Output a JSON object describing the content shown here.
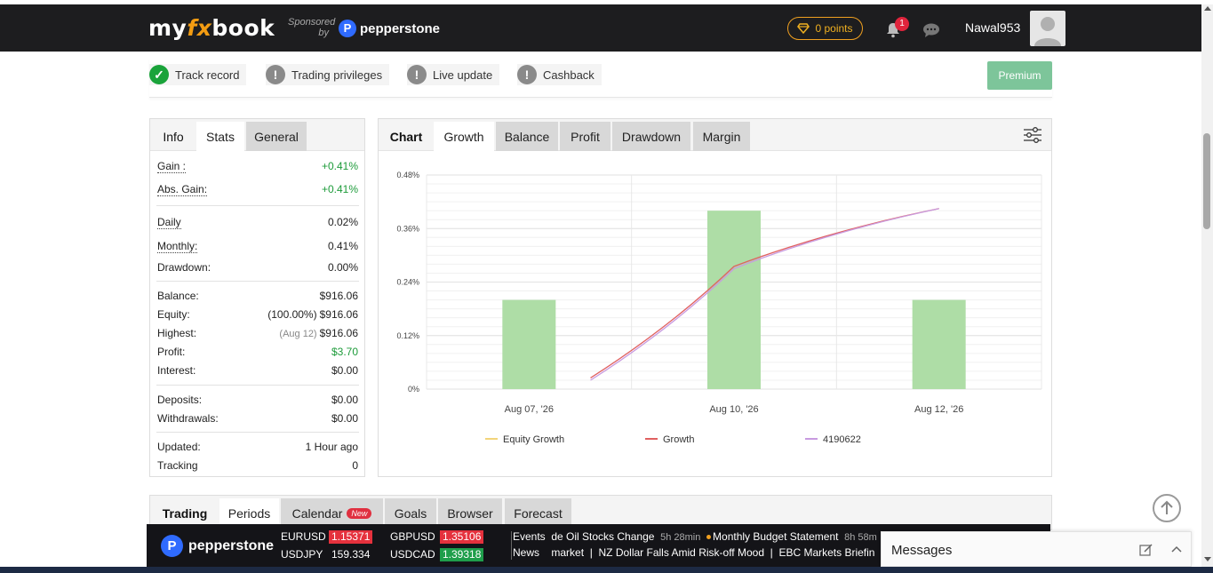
{
  "header": {
    "logo_my": "my",
    "logo_fx": "fx",
    "logo_book": "book",
    "sponsored_line1": "Sponsored",
    "sponsored_line2": "by",
    "sponsor_name": "pepperstone",
    "points": "0 points",
    "notification_count": "1",
    "username": "Nawal953"
  },
  "status": {
    "items": [
      {
        "label": "Track record",
        "state": "ok"
      },
      {
        "label": "Trading privileges",
        "state": "warn"
      },
      {
        "label": "Live update",
        "state": "warn"
      },
      {
        "label": "Cashback",
        "state": "warn"
      }
    ],
    "premium": "Premium"
  },
  "stats_panel": {
    "tabs": [
      "Info",
      "Stats",
      "General"
    ],
    "rows": {
      "gain": {
        "k": "Gain :",
        "v": "+0.41%"
      },
      "abs_gain": {
        "k": "Abs. Gain:",
        "v": "+0.41%"
      },
      "daily": {
        "k": "Daily",
        "v": "0.02%"
      },
      "monthly": {
        "k": "Monthly:",
        "v": "0.41%"
      },
      "drawdown": {
        "k": "Drawdown:",
        "v": "0.00%"
      },
      "balance": {
        "k": "Balance:",
        "v": "$916.06"
      },
      "equity": {
        "k": "Equity:",
        "pre": "(100.00%)",
        "v": "$916.06"
      },
      "highest": {
        "k": "Highest:",
        "pre": "(Aug 12)",
        "v": "$916.06"
      },
      "profit": {
        "k": "Profit:",
        "v": "$3.70"
      },
      "interest": {
        "k": "Interest:",
        "v": "$0.00"
      },
      "deposits": {
        "k": "Deposits:",
        "v": "$0.00"
      },
      "withdrawals": {
        "k": "Withdrawals:",
        "v": "$0.00"
      },
      "updated": {
        "k": "Updated:",
        "v": "1 Hour ago"
      },
      "tracking": {
        "k": "Tracking",
        "v": "0"
      }
    }
  },
  "chart_panel": {
    "tabs": [
      "Chart",
      "Growth",
      "Balance",
      "Profit",
      "Drawdown",
      "Margin"
    ]
  },
  "chart_data": {
    "type": "bar",
    "categories": [
      "Aug 07, '26",
      "Aug 10, '26",
      "Aug 12, '26"
    ],
    "ylim": [
      0,
      0.48
    ],
    "yticks": [
      "0%",
      "0.12%",
      "0.24%",
      "0.36%",
      "0.48%"
    ],
    "ytick_values": [
      0,
      0.12,
      0.24,
      0.36,
      0.48
    ],
    "bars": [
      0.2,
      0.4,
      0.2
    ],
    "series": [
      {
        "name": "Equity Growth",
        "color": "#f2d47a",
        "x": [],
        "values": []
      },
      {
        "name": "Growth",
        "color": "#e06060",
        "x": [
          -0.7,
          0,
          1.0
        ],
        "values": [
          0.025,
          0.275,
          0.405
        ]
      },
      {
        "name": "4190622",
        "color": "#c89be0",
        "x": [
          -0.7,
          0,
          1.0
        ],
        "values": [
          0.02,
          0.27,
          0.405
        ]
      }
    ],
    "bar_color": "#aedda6",
    "grid": true,
    "legend": "bottom"
  },
  "bottom_tabs": {
    "items": [
      "Trading",
      "Periods",
      "Calendar",
      "Goals",
      "Browser",
      "Forecast"
    ],
    "new_badge": "New"
  },
  "ticker": {
    "brand": "pepperstone",
    "pairs": [
      {
        "pair": "EURUSD",
        "price": "1.15371",
        "style": "red"
      },
      {
        "pair": "GBPUSD",
        "price": "1.35106",
        "style": "red"
      },
      {
        "pair": "USDJPY",
        "price": "159.334",
        "style": "plain"
      },
      {
        "pair": "USDCAD",
        "price": "1.39318",
        "style": "greenbg"
      }
    ],
    "events_label": "Events",
    "news_label": "News",
    "event1": "de Oil Stocks Change",
    "event1_time": "5h 28min",
    "event2": "Monthly Budget Statement",
    "event2_time": "8h 58m",
    "news1": "market",
    "news2": "NZ Dollar Falls Amid Risk-off Mood",
    "news3": "EBC Markets Briefin"
  },
  "messages": {
    "title": "Messages"
  }
}
